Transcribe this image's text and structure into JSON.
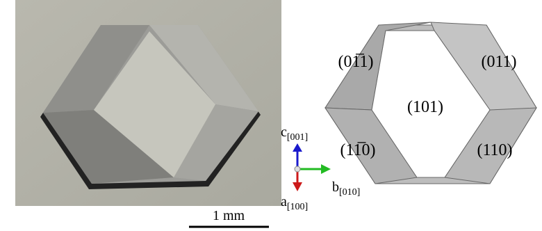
{
  "face_labels": [
    "(01̅1)",
    "(011)",
    "(101)",
    "(11̅0)",
    "(110)"
  ],
  "axes": [
    {
      "letter": "c",
      "subscript": "[001]"
    },
    {
      "letter": "b",
      "subscript": "[010]"
    },
    {
      "letter": "a",
      "subscript": "[100]"
    }
  ],
  "scale_bar": "1 mm"
}
